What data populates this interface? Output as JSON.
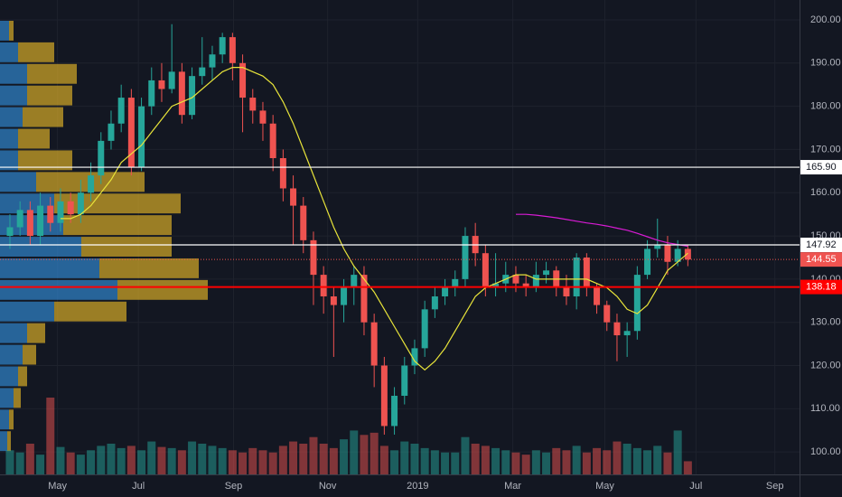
{
  "chart_data": {
    "type": "candlestick",
    "x": [
      0,
      1,
      2,
      3,
      4,
      5,
      6,
      7,
      8,
      9,
      10,
      11,
      12,
      13,
      14,
      15,
      16,
      17,
      18,
      19,
      20,
      21,
      22,
      23,
      24,
      25,
      26,
      27,
      28,
      29,
      30,
      31,
      32,
      33,
      34,
      35,
      36,
      37,
      38,
      39,
      40,
      41,
      42,
      43,
      44,
      45,
      46,
      47,
      48,
      49,
      50,
      51,
      52,
      53,
      54,
      55,
      56,
      57,
      58,
      59,
      60,
      61,
      62,
      63,
      64,
      65,
      66,
      67
    ],
    "open": [
      150,
      152,
      156,
      150,
      157,
      153,
      158,
      155,
      160,
      164,
      172,
      176,
      182,
      166,
      180,
      186,
      184,
      188,
      178,
      187,
      189,
      192,
      196,
      190,
      182,
      179,
      176,
      168,
      161,
      157,
      149,
      141,
      136,
      134,
      138,
      141,
      130,
      120,
      106,
      113,
      120,
      124,
      133,
      136,
      138,
      140,
      150,
      146,
      138,
      139,
      141,
      139,
      138,
      141,
      142,
      138,
      136,
      145,
      138,
      134,
      130,
      127,
      128,
      141,
      147,
      148,
      144,
      147
    ],
    "high": [
      155,
      158,
      158,
      160,
      159,
      161,
      160,
      163,
      167,
      174,
      179,
      185,
      184,
      182,
      189,
      190,
      199,
      190,
      189,
      196,
      194,
      197,
      197,
      192,
      184,
      181,
      178,
      170,
      164,
      159,
      151,
      143,
      138,
      140,
      143,
      143,
      132,
      122,
      115,
      122,
      126,
      135,
      138,
      140,
      142,
      152,
      153,
      148,
      146,
      144,
      143,
      141,
      144,
      144,
      143,
      141,
      146,
      146,
      139,
      135,
      132,
      130,
      143,
      149,
      154,
      150,
      149,
      148
    ],
    "low": [
      147,
      150,
      148,
      148,
      151,
      151,
      153,
      153,
      158,
      162,
      170,
      174,
      164,
      165,
      178,
      181,
      183,
      176,
      177,
      185,
      186,
      190,
      186,
      174,
      176,
      172,
      165,
      158,
      148,
      146,
      134,
      132,
      122,
      130,
      134,
      127,
      115,
      104,
      104,
      111,
      118,
      122,
      131,
      134,
      136,
      138,
      143,
      136,
      136,
      137,
      137,
      136,
      137,
      139,
      136,
      134,
      133,
      136,
      132,
      128,
      121,
      122,
      126,
      140,
      145,
      141,
      143,
      143
    ],
    "close": [
      152,
      156,
      150,
      157,
      153,
      158,
      155,
      160,
      164,
      172,
      176,
      182,
      166,
      180,
      186,
      184,
      188,
      178,
      187,
      189,
      192,
      196,
      190,
      182,
      179,
      176,
      168,
      161,
      157,
      149,
      141,
      136,
      134,
      138,
      141,
      130,
      120,
      106,
      113,
      120,
      124,
      133,
      136,
      138,
      140,
      150,
      146,
      138,
      139,
      141,
      139,
      138,
      141,
      142,
      138,
      136,
      145,
      138,
      134,
      130,
      127,
      128,
      141,
      147,
      148,
      144,
      147,
      144.55
    ],
    "volume": [
      22,
      20,
      28,
      18,
      70,
      25,
      20,
      18,
      22,
      26,
      28,
      24,
      26,
      22,
      30,
      25,
      24,
      22,
      30,
      28,
      26,
      24,
      22,
      20,
      24,
      22,
      20,
      26,
      30,
      28,
      34,
      28,
      24,
      32,
      40,
      36,
      38,
      26,
      22,
      30,
      28,
      24,
      22,
      20,
      20,
      34,
      28,
      26,
      24,
      22,
      20,
      18,
      22,
      20,
      24,
      22,
      26,
      20,
      24,
      22,
      30,
      28,
      24,
      22,
      26,
      20,
      40,
      12
    ],
    "ma_short": [
      null,
      null,
      null,
      null,
      null,
      154,
      154,
      155,
      157,
      160,
      163,
      167,
      169,
      171,
      174,
      177,
      180,
      181,
      182,
      184,
      186,
      188,
      189,
      189,
      188,
      187,
      185,
      181,
      176,
      170,
      164,
      158,
      152,
      147,
      143,
      140,
      137,
      133,
      129,
      125,
      121,
      119,
      121,
      124,
      128,
      132,
      136,
      138,
      139,
      140,
      141,
      141,
      140,
      140,
      140,
      140,
      140,
      140,
      139,
      138,
      136,
      133,
      132,
      134,
      138,
      142,
      144,
      146
    ],
    "ma_long": [
      null,
      null,
      null,
      null,
      null,
      null,
      null,
      null,
      null,
      null,
      null,
      null,
      null,
      null,
      null,
      null,
      null,
      null,
      null,
      null,
      null,
      null,
      null,
      null,
      null,
      null,
      null,
      null,
      null,
      null,
      null,
      null,
      null,
      null,
      null,
      null,
      null,
      null,
      null,
      null,
      null,
      null,
      null,
      null,
      null,
      null,
      null,
      null,
      null,
      null,
      155,
      155,
      154.8,
      154.5,
      154.2,
      153.8,
      153.4,
      153,
      152.7,
      152.3,
      151.8,
      151.3,
      150.6,
      149.8,
      149,
      148.4,
      148,
      147.6
    ],
    "volume_profile": {
      "prices": [
        197.5,
        192.5,
        187.5,
        182.5,
        177.5,
        172.5,
        167.5,
        162.5,
        157.5,
        152.5,
        147.5,
        142.5,
        137.5,
        132.5,
        127.5,
        122.5,
        117.5,
        112.5,
        107.5,
        102.5
      ],
      "up": [
        10,
        20,
        30,
        30,
        25,
        20,
        20,
        40,
        60,
        70,
        90,
        110,
        130,
        60,
        30,
        25,
        20,
        15,
        10,
        8
      ],
      "down": [
        5,
        40,
        55,
        50,
        45,
        35,
        60,
        120,
        140,
        120,
        100,
        110,
        100,
        80,
        20,
        15,
        10,
        8,
        5,
        4
      ]
    },
    "levels": [
      {
        "value": 165.9,
        "label": "165.90",
        "color": "#ffffff"
      },
      {
        "value": 147.92,
        "label": "147.92",
        "color": "#ffffff"
      },
      {
        "value": 144.55,
        "label": "144.55",
        "color": "#ef5350"
      },
      {
        "value": 138.18,
        "label": "138.18",
        "color": "#ff0000"
      }
    ],
    "colors": {
      "up": "#26a69a",
      "down": "#ef5350",
      "ma_short": "#e8e43a",
      "ma_long": "#d81bd4",
      "profile_up": "#2f7fc1",
      "profile_down": "#c9a227"
    },
    "xlim": [
      -0.98,
      78.04
    ],
    "ylim": [
      94.8,
      204.6
    ],
    "xticks": [
      {
        "value": 4.7,
        "label": "May"
      },
      {
        "value": 12.7,
        "label": "Jul"
      },
      {
        "value": 22.1,
        "label": "Sep"
      },
      {
        "value": 31.4,
        "label": "Nov"
      },
      {
        "value": 40.3,
        "label": "2019"
      },
      {
        "value": 49.7,
        "label": "Mar"
      },
      {
        "value": 58.8,
        "label": "May"
      },
      {
        "value": 67.8,
        "label": "Jul"
      },
      {
        "value": 75.6,
        "label": "Sep"
      }
    ],
    "yticks": [
      {
        "value": 100,
        "label": "100.00"
      },
      {
        "value": 110,
        "label": "110.00"
      },
      {
        "value": 120,
        "label": "120.00"
      },
      {
        "value": 130,
        "label": "130.00"
      },
      {
        "value": 140,
        "label": "140.00"
      },
      {
        "value": 150,
        "label": "150.00"
      },
      {
        "value": 160,
        "label": "160.00"
      },
      {
        "value": 170,
        "label": "170.00"
      },
      {
        "value": 180,
        "label": "180.00"
      },
      {
        "value": 190,
        "label": "190.00"
      },
      {
        "value": 200,
        "label": "200.00"
      }
    ],
    "grid": true
  }
}
